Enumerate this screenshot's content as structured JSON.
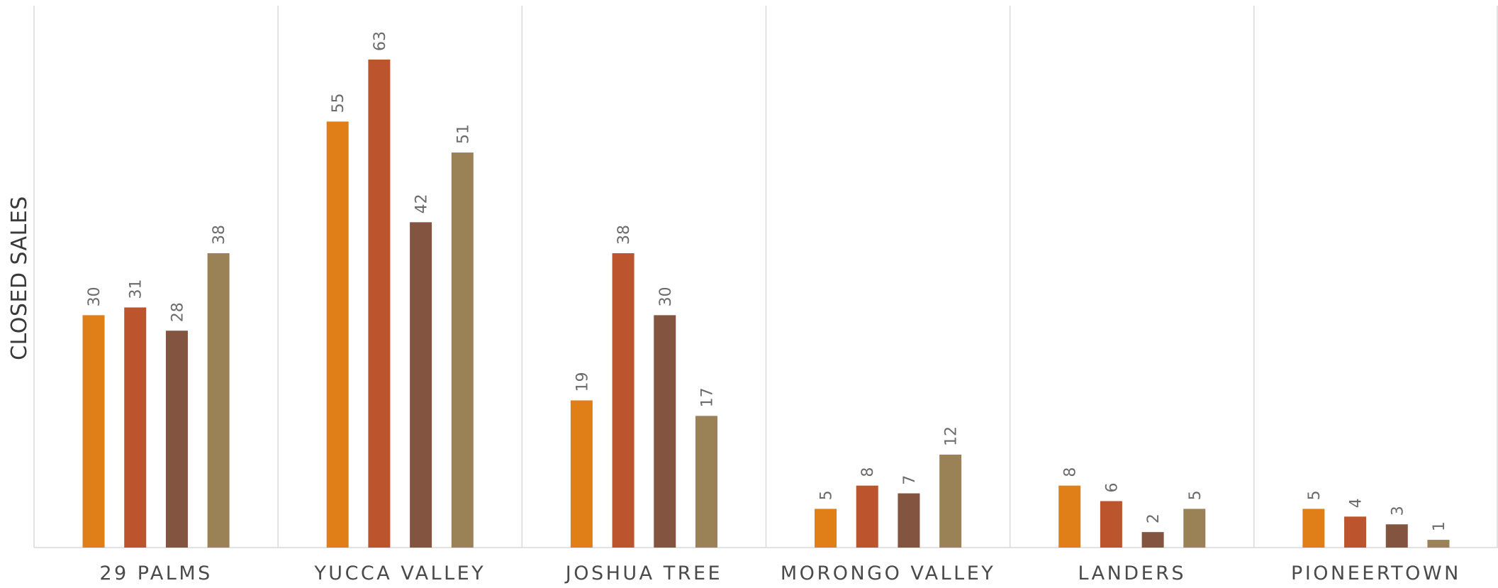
{
  "chart_data": {
    "type": "bar",
    "title": "",
    "xlabel": "",
    "ylabel": "CLOSED SALES",
    "categories": [
      "29 PALMS",
      "YUCCA VALLEY",
      "JOSHUA TREE",
      "MORONGO VALLEY",
      "LANDERS",
      "PIONEERTOWN"
    ],
    "series": [
      {
        "values": [
          30,
          55,
          19,
          5,
          8,
          5
        ],
        "color": "#E07F17"
      },
      {
        "values": [
          31,
          63,
          38,
          8,
          6,
          4
        ],
        "color": "#BC552D"
      },
      {
        "values": [
          28,
          42,
          30,
          7,
          2,
          3
        ],
        "color": "#835440"
      },
      {
        "values": [
          38,
          51,
          17,
          12,
          5,
          1
        ],
        "color": "#9B8156"
      }
    ],
    "ylim": [
      0,
      70
    ],
    "grid": false,
    "category_dividers": true,
    "legend": "none",
    "data_labels": "vertical, above bars"
  }
}
